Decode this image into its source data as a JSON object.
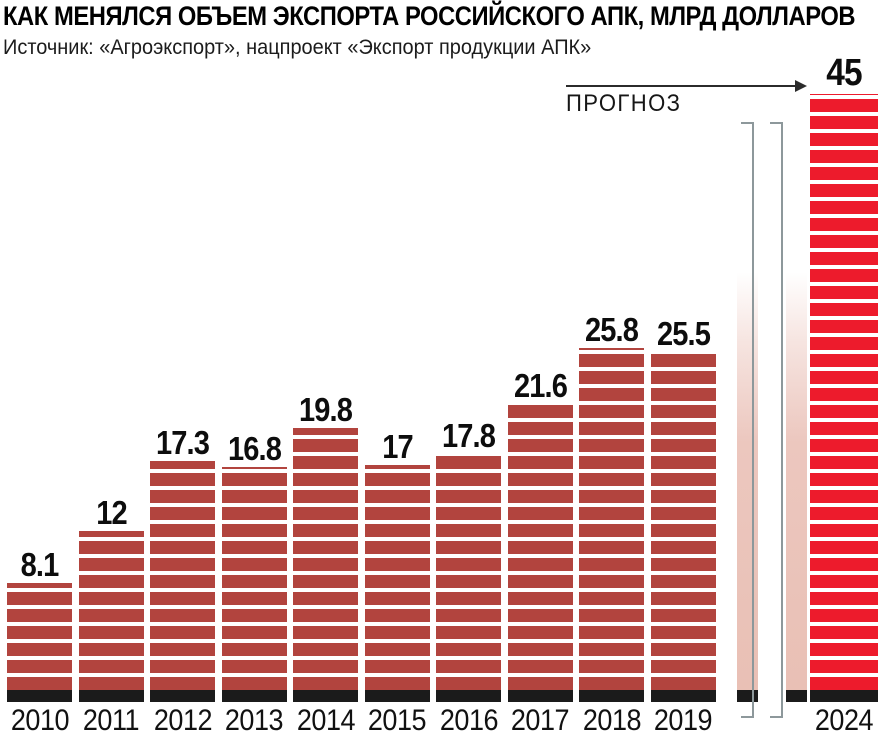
{
  "header": {
    "title": "КАК МЕНЯЛСЯ ОБЪЕМ ЭКСПОРТА РОССИЙСКОГО АПК, МЛРД ДОЛЛАРОВ",
    "source": "Источник: «Агроэкспорт», нацпроект «Экспорт продукции АПК»"
  },
  "annotations": {
    "forecast_label": "ПРОГНОЗ"
  },
  "colors": {
    "bar": "#b2443e",
    "forecast_bar": "#ed1b2c",
    "bar_base": "#1b1b1b",
    "ghost_bar": "#e9c0b5",
    "bracket": "#8d989b",
    "arrow": "#2b2b2b",
    "text": "#111111"
  },
  "chart_data": {
    "type": "bar",
    "title": "КАК МЕНЯЛСЯ ОБЪЕМ ЭКСПОРТА РОССИЙСКОГО АПК, МЛРД ДОЛЛАРОВ",
    "unit": "млрд долларов",
    "source": "Источник: «Агроэкспорт», нацпроект «Экспорт продукции АПК»",
    "categories": [
      "2010",
      "2011",
      "2012",
      "2013",
      "2014",
      "2015",
      "2016",
      "2017",
      "2018",
      "2019",
      "2024"
    ],
    "values": [
      8.1,
      12,
      17.3,
      16.8,
      19.8,
      17,
      17.8,
      21.6,
      25.8,
      25.5,
      45
    ],
    "labels": [
      "8.1",
      "12",
      "17.3",
      "16.8",
      "19.8",
      "17",
      "17.8",
      "21.6",
      "25.8",
      "25.5",
      "45"
    ],
    "forecast": {
      "year": "2024",
      "value": 45,
      "label": "ПРОГНОЗ"
    },
    "axis_break_between": [
      "2019",
      "2024"
    ],
    "ylim": [
      0,
      45
    ],
    "grid": false,
    "legend": "none",
    "xlabel": "",
    "ylabel": ""
  }
}
